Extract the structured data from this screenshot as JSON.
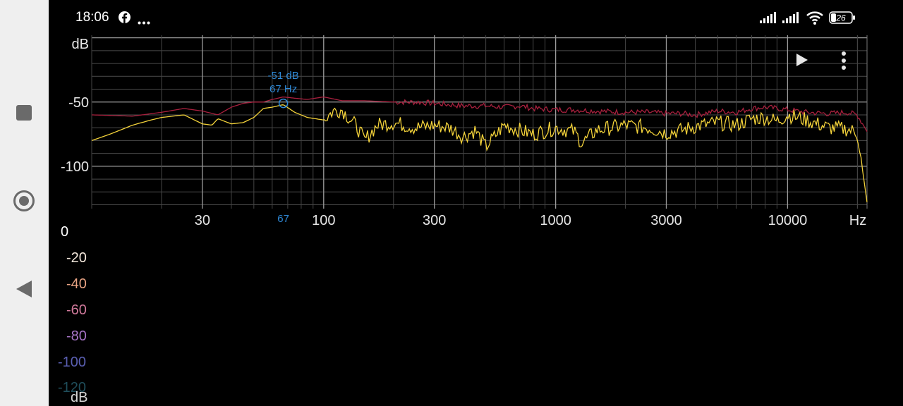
{
  "status_bar": {
    "time": "18:06",
    "battery_level": "26",
    "icons": [
      "facebook-icon",
      "more-dots-icon",
      "signal-icon",
      "signal-icon",
      "wifi-icon",
      "battery-icon"
    ]
  },
  "nav_bar": {
    "icons": [
      "square-icon",
      "circle-icon",
      "triangle-back-icon"
    ]
  },
  "toolbar": {
    "icons": [
      "play-icon",
      "kebab-menu-icon"
    ]
  },
  "spectrum": {
    "y_unit": "dB",
    "x_unit": "Hz",
    "y_ticks": [
      "-50",
      "-100"
    ],
    "x_ticks": [
      "30",
      "100",
      "300",
      "1000",
      "3000",
      "10000"
    ],
    "marker": {
      "db_label": "-51 dB",
      "hz_label": "67 Hz",
      "axis_label": "67",
      "freq": 67,
      "db": -51,
      "color": "#2f8ad8"
    }
  },
  "chart_data": {
    "type": "line",
    "xscale": "log",
    "xlim": [
      10,
      22000
    ],
    "ylim": [
      -133,
      2
    ],
    "grid": true,
    "xlabel": "Hz",
    "ylabel": "dB",
    "series": [
      {
        "color": "#a8203e",
        "x": [
          10,
          15,
          20,
          25,
          30,
          35,
          40,
          45,
          50,
          55,
          60,
          67,
          75,
          85,
          100,
          120,
          150,
          200,
          250,
          300,
          400,
          500,
          600,
          700,
          800,
          1000,
          1200,
          1500,
          2000,
          2500,
          3000,
          3500,
          4000,
          5000,
          6000,
          7000,
          8000,
          9000,
          10000,
          12000,
          15000,
          18000,
          20000,
          22000
        ],
        "y": [
          -60,
          -61,
          -58,
          -55,
          -57,
          -60,
          -54,
          -51,
          -50,
          -50,
          -48,
          -46,
          -47,
          -48,
          -46,
          -49,
          -49,
          -50,
          -50,
          -51,
          -53,
          -53,
          -54,
          -53,
          -55,
          -56,
          -56,
          -57,
          -58,
          -58,
          -59,
          -59,
          -60,
          -57,
          -58,
          -55,
          -54,
          -55,
          -56,
          -58,
          -59,
          -58,
          -60,
          -73
        ]
      },
      {
        "color": "#f3d23a",
        "x": [
          10,
          12,
          15,
          18,
          20,
          25,
          30,
          33,
          35,
          40,
          45,
          50,
          55,
          60,
          67,
          75,
          85,
          100,
          110,
          120,
          140,
          150,
          170,
          200,
          250,
          300,
          350,
          400,
          450,
          500,
          600,
          700,
          800,
          1000,
          1200,
          1300,
          1500,
          2000,
          2500,
          3000,
          3500,
          4000,
          5000,
          6000,
          7000,
          8000,
          9000,
          10000,
          12000,
          15000,
          18000,
          20000,
          21000,
          22000
        ],
        "y": [
          -80,
          -75,
          -68,
          -64,
          -62,
          -60,
          -67,
          -68,
          -63,
          -67,
          -66,
          -62,
          -55,
          -54,
          -52,
          -58,
          -62,
          -64,
          -57,
          -56,
          -70,
          -80,
          -68,
          -66,
          -70,
          -68,
          -70,
          -77,
          -72,
          -85,
          -68,
          -72,
          -75,
          -70,
          -73,
          -82,
          -72,
          -68,
          -70,
          -74,
          -72,
          -69,
          -66,
          -68,
          -63,
          -62,
          -65,
          -60,
          -64,
          -70,
          -71,
          -74,
          -102,
          -128
        ]
      }
    ]
  },
  "color_scale": {
    "unit": "dB",
    "labels": [
      "0",
      "-20",
      "-40",
      "-60",
      "-80",
      "-100",
      "-120"
    ],
    "colors": [
      "#ffffff",
      "#f4e8dc",
      "#e8a383",
      "#d27a9c",
      "#a573c5",
      "#5a5fb2",
      "#1f4e5b"
    ]
  }
}
